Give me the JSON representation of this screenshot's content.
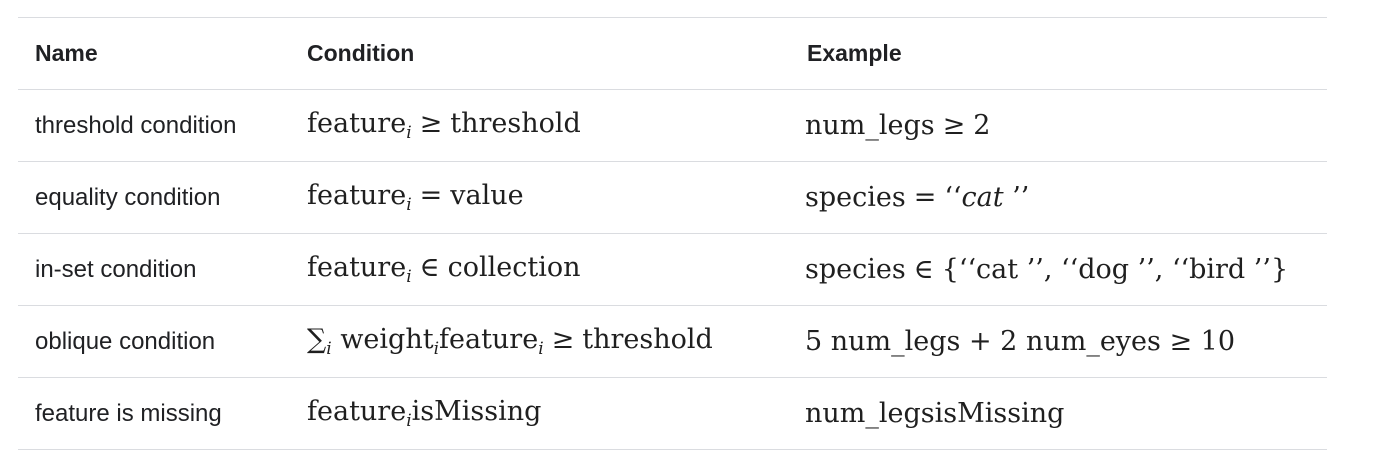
{
  "table": {
    "headers": {
      "name": "Name",
      "condition": "Condition",
      "example": "Example"
    },
    "rows": [
      {
        "name": "threshold condition",
        "condition": {
          "pre": "",
          "feature": "feature",
          "sub": "i",
          "op": "≥",
          "rhs": "threshold"
        },
        "example": {
          "lhs": "num_legs",
          "op": "≥",
          "rhs": "2"
        }
      },
      {
        "name": "equality condition",
        "condition": {
          "pre": "",
          "feature": "feature",
          "sub": "i",
          "op": "=",
          "rhs": "value"
        },
        "example": {
          "lhs": "species",
          "op": "=",
          "rhs_open": "‘‘",
          "rhs_value": "cat",
          "rhs_close": "’’"
        }
      },
      {
        "name": "in-set condition",
        "condition": {
          "pre": "",
          "feature": "feature",
          "sub": "i",
          "op": "∈",
          "rhs": "collection"
        },
        "example": {
          "lhs": "species",
          "op": "∈",
          "rhs": "{‘‘cat ’’, ‘‘dog ’’, ‘‘bird ’’}"
        }
      },
      {
        "name": "oblique condition",
        "condition": {
          "sum": "∑",
          "sum_sub": "i",
          "weight": "weight",
          "weight_sub": "i",
          "feature": "feature",
          "sub": "i",
          "op": "≥",
          "rhs": "threshold"
        },
        "example": {
          "text": "5 num_legs + 2 num_eyes ≥ 10"
        }
      },
      {
        "name": "feature is missing",
        "condition": {
          "feature": "feature",
          "sub": "i",
          "rhs": "isMissing"
        },
        "example": {
          "lhs": "num_legs",
          "rhs": "isMissing"
        }
      }
    ]
  }
}
